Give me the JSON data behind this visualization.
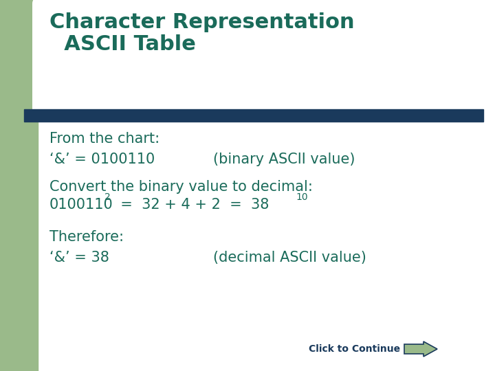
{
  "title_line1": "Character Representation",
  "title_line2": "  ASCII Table",
  "title_color": "#1a6b5a",
  "title_fontsize": 22,
  "title_fontweight": "bold",
  "bg_color": "#ffffff",
  "left_bar_color": "#9aba8a",
  "divider_color": "#1a3a5c",
  "body_color": "#1a6b5a",
  "body_fontsize": 15,
  "line1": "From the chart:",
  "line2_left": "‘&’ = 0100110",
  "line2_right": "(binary ASCII value)",
  "line3": "Convert the binary value to decimal:",
  "line5": "Therefore:",
  "line6_left": "‘&’ = 38",
  "line6_right": "(decimal ASCII value)",
  "click_text": "Click to Continue",
  "click_color": "#1a3a5c",
  "click_fontsize": 10,
  "arrow_color": "#9aba8a",
  "subscript_fontsize": 10
}
